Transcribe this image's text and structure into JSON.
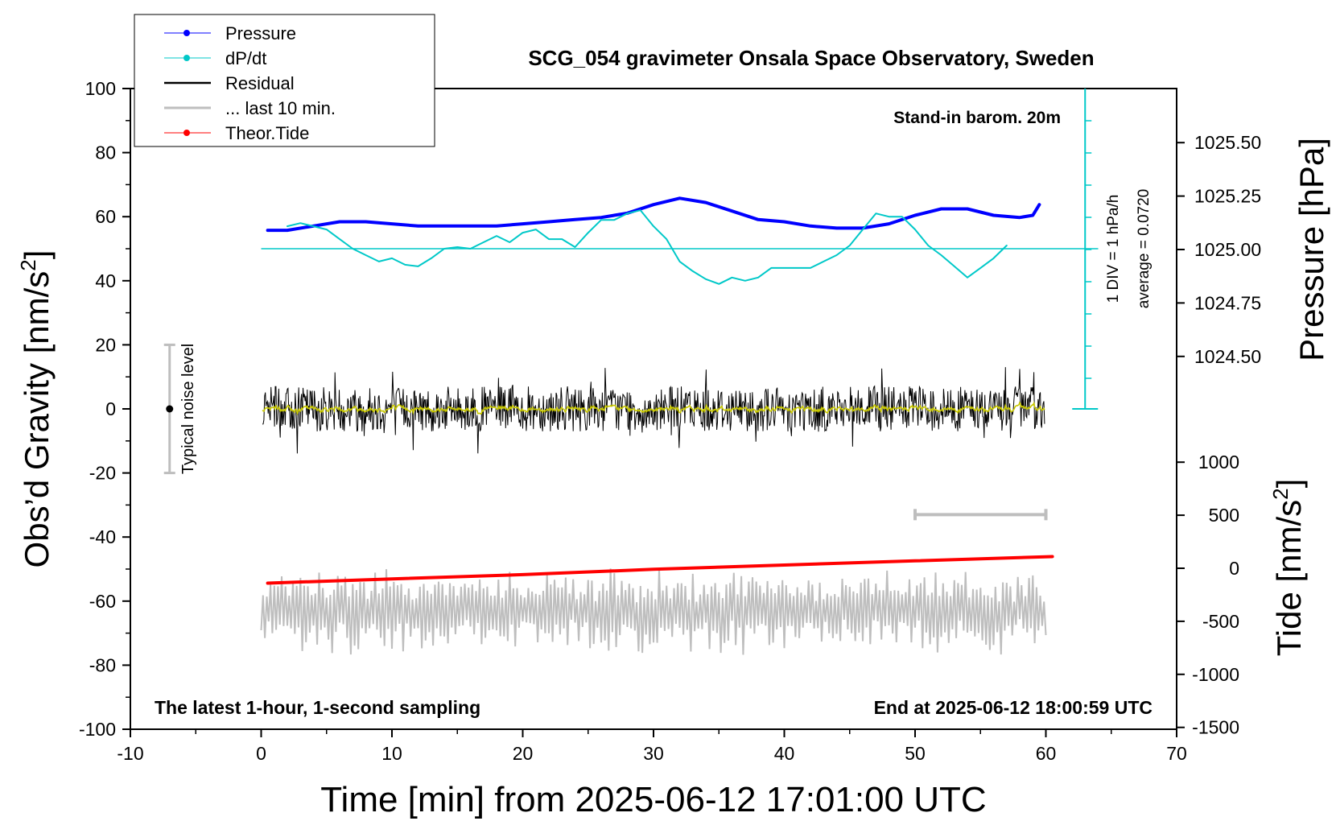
{
  "chart_data": {
    "type": "line",
    "title": "SCG_054 gravimeter Onsala Space Observatory, Sweden",
    "xlabel": "Time [min] from 2025-06-12 17:01:00 UTC",
    "ylabel_left": "Obs’d Gravity [nm/s²]",
    "ylabel_left_main": "Obs’d Gravity [nm/s",
    "ylabel_left_sup": "2",
    "ylabel_left_end": "]",
    "ylabel_right_pressure": "Pressure [hPa]",
    "ylabel_right_tide": "Tide [nm/s²]",
    "ylabel_right_tide_main": "Tide [nm/s",
    "ylabel_right_tide_sup": "2",
    "ylabel_right_tide_end": "]",
    "xlim": [
      -10,
      70
    ],
    "ylim": [
      -100,
      100
    ],
    "pressure_axis": {
      "ticks": [
        1024.5,
        1024.75,
        1025.0,
        1025.25,
        1025.5
      ],
      "tick_labels": [
        "1024.50",
        "1024.75",
        "1025.00",
        "1025.25",
        "1025.50"
      ]
    },
    "tide_axis": {
      "ticks": [
        -1500,
        -1000,
        -500,
        0,
        500,
        1000
      ],
      "tick_labels": [
        "-1500",
        "-1000",
        "-500",
        "0",
        "500",
        "1000"
      ]
    },
    "x_ticks": [
      -10,
      0,
      10,
      20,
      30,
      40,
      50,
      60,
      70
    ],
    "y_ticks": [
      -100,
      -80,
      -60,
      -40,
      -20,
      0,
      20,
      40,
      60,
      80,
      100
    ],
    "legend": {
      "placement": "top-left",
      "entries": [
        {
          "label": "Pressure",
          "color": "#0000ff",
          "marker": true
        },
        {
          "label": "dP/dt",
          "color": "#00c8c8",
          "marker": true
        },
        {
          "label": "Residual",
          "color": "#000000",
          "marker": false
        },
        {
          "label": "... last 10 min.",
          "color": "#bebebe",
          "marker": false
        },
        {
          "label": "Theor.Tide",
          "color": "#ff0000",
          "marker": true
        }
      ]
    },
    "annotations": {
      "barometer": "Stand-in barom. 20m",
      "dpdt_scale": "1 DIV = 1 hPa/h",
      "dpdt_average": "average = 0.0720",
      "noise_label": "Typical noise level",
      "bottom_left": "The latest 1-hour, 1-second sampling",
      "bottom_right": "End at 2025-06-12 18:00:59 UTC"
    },
    "noise_bar": {
      "x": -7,
      "center": 0,
      "range": [
        -20,
        20
      ]
    },
    "last10_bar": {
      "x_range": [
        50,
        60
      ],
      "y": -33
    },
    "dpdt_zero_line": 50,
    "series": [
      {
        "name": "Pressure",
        "color": "#0000ff",
        "axis": "pressure",
        "x": [
          0.5,
          2,
          4,
          6,
          8,
          10,
          12,
          14,
          16,
          18,
          20,
          22,
          24,
          26,
          28,
          30,
          32,
          34,
          36,
          38,
          40,
          42,
          44,
          46,
          48,
          50,
          52,
          54,
          56,
          58,
          59,
          59.5
        ],
        "values": [
          1025.09,
          1025.09,
          1025.11,
          1025.13,
          1025.13,
          1025.12,
          1025.11,
          1025.11,
          1025.11,
          1025.11,
          1025.12,
          1025.13,
          1025.14,
          1025.15,
          1025.17,
          1025.21,
          1025.24,
          1025.22,
          1025.18,
          1025.14,
          1025.13,
          1025.11,
          1025.1,
          1025.1,
          1025.12,
          1025.16,
          1025.19,
          1025.19,
          1025.16,
          1025.15,
          1025.16,
          1025.21
        ]
      },
      {
        "name": "dP/dt",
        "color": "#00c8c8",
        "axis": "dpdt",
        "x": [
          2,
          3,
          4,
          5,
          6,
          7,
          8,
          9,
          10,
          11,
          12,
          13,
          14,
          15,
          16,
          17,
          18,
          19,
          20,
          21,
          22,
          23,
          24,
          25,
          26,
          27,
          28,
          29,
          30,
          31,
          32,
          33,
          34,
          35,
          36,
          37,
          38,
          39,
          40,
          41,
          42,
          43,
          44,
          45,
          46,
          47,
          48,
          49,
          50,
          51,
          52,
          53,
          54,
          55,
          56,
          57
        ],
        "values": [
          57,
          58,
          57,
          56,
          53,
          50,
          48,
          46,
          47,
          45,
          44.5,
          47,
          50,
          50.5,
          50,
          52,
          54,
          52,
          55,
          56,
          53,
          53,
          50.5,
          55,
          59,
          59,
          61,
          62,
          57,
          53,
          46,
          43,
          40.5,
          39,
          41,
          40,
          41,
          44,
          44,
          44,
          44,
          46,
          48,
          51,
          56,
          61,
          60,
          60,
          56,
          51,
          48,
          44.5,
          41,
          44,
          47,
          51
        ]
      },
      {
        "name": "Theor.Tide",
        "color": "#ff0000",
        "axis": "tide",
        "x": [
          0.5,
          10,
          20,
          30,
          40,
          50,
          60.5
        ],
        "values": [
          -140,
          -100,
          -60,
          -10,
          30,
          70,
          110
        ]
      }
    ]
  }
}
